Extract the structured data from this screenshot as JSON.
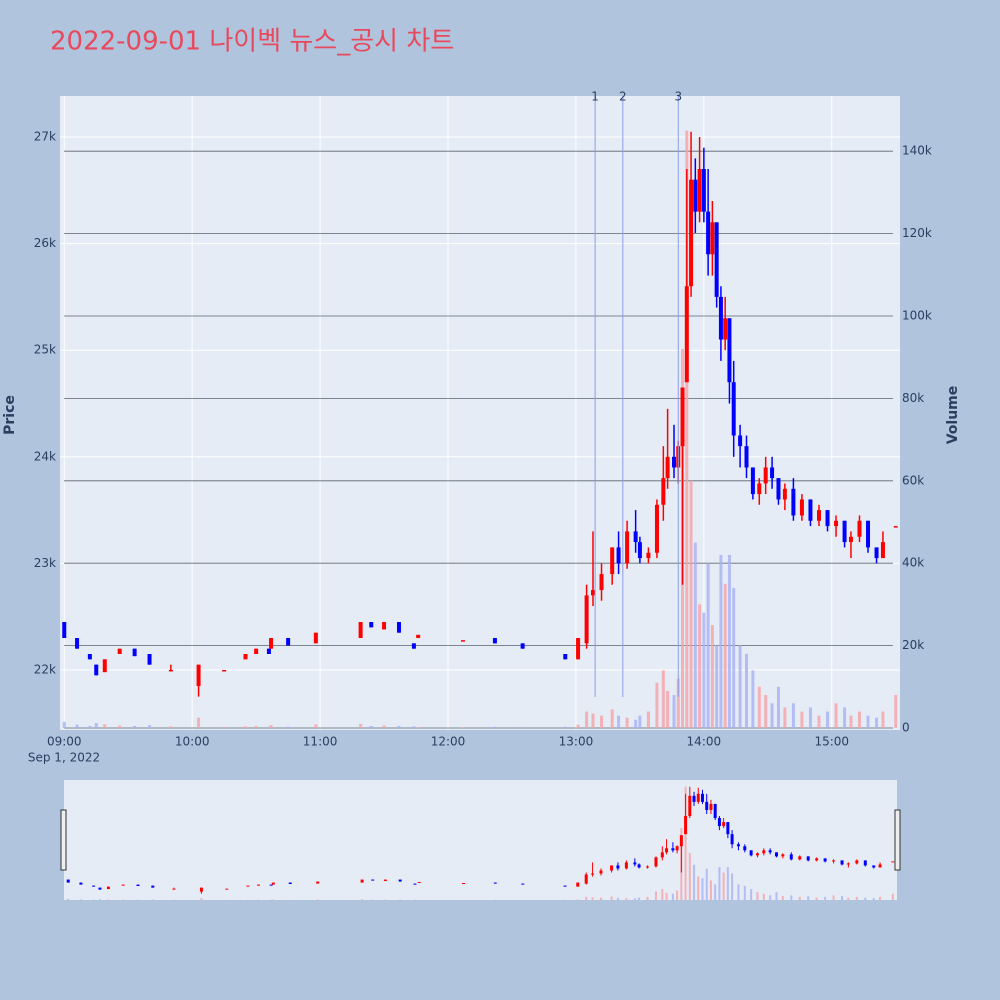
{
  "chart_data": {
    "type": "candlestick",
    "title": "2022-09-01 나이벡 뉴스_공시 차트",
    "y_label": "Price",
    "y2_label": "Volume",
    "x_date_label": "Sep 1, 2022",
    "increasing_color": "#ff0000",
    "decreasing_color": "#0000ff",
    "volume_increasing_color": "#f5a3a8",
    "volume_decreasing_color": "#a8b2f2",
    "marker_color": "#8a9ee8",
    "rangeslider": true,
    "x": [
      "2022-09-01 09:00",
      "2022-09-01 09:06",
      "2022-09-01 09:12",
      "2022-09-01 09:15",
      "2022-09-01 09:19",
      "2022-09-01 09:26",
      "2022-09-01 09:33",
      "2022-09-01 09:40",
      "2022-09-01 09:50",
      "2022-09-01 10:03",
      "2022-09-01 10:15",
      "2022-09-01 10:25",
      "2022-09-01 10:30",
      "2022-09-01 10:36",
      "2022-09-01 10:37",
      "2022-09-01 10:45",
      "2022-09-01 10:58",
      "2022-09-01 11:19",
      "2022-09-01 11:24",
      "2022-09-01 11:30",
      "2022-09-01 11:37",
      "2022-09-01 11:44",
      "2022-09-01 11:46",
      "2022-09-01 12:07",
      "2022-09-01 12:22",
      "2022-09-01 12:35",
      "2022-09-01 12:55",
      "2022-09-01 13:01",
      "2022-09-01 13:05",
      "2022-09-01 13:08",
      "2022-09-01 13:12",
      "2022-09-01 13:17",
      "2022-09-01 13:20",
      "2022-09-01 13:24",
      "2022-09-01 13:28",
      "2022-09-01 13:30",
      "2022-09-01 13:34",
      "2022-09-01 13:38",
      "2022-09-01 13:41",
      "2022-09-01 13:43",
      "2022-09-01 13:46",
      "2022-09-01 13:48",
      "2022-09-01 13:50",
      "2022-09-01 13:52",
      "2022-09-01 13:54",
      "2022-09-01 13:56",
      "2022-09-01 13:58",
      "2022-09-01 14:00",
      "2022-09-01 14:02",
      "2022-09-01 14:04",
      "2022-09-01 14:06",
      "2022-09-01 14:08",
      "2022-09-01 14:10",
      "2022-09-01 14:12",
      "2022-09-01 14:14",
      "2022-09-01 14:17",
      "2022-09-01 14:20",
      "2022-09-01 14:23",
      "2022-09-01 14:26",
      "2022-09-01 14:29",
      "2022-09-01 14:32",
      "2022-09-01 14:35",
      "2022-09-01 14:38",
      "2022-09-01 14:42",
      "2022-09-01 14:46",
      "2022-09-01 14:50",
      "2022-09-01 14:54",
      "2022-09-01 14:58",
      "2022-09-01 15:02",
      "2022-09-01 15:06",
      "2022-09-01 15:09",
      "2022-09-01 15:13",
      "2022-09-01 15:17",
      "2022-09-01 15:21",
      "2022-09-01 15:24",
      "2022-09-01 15:30"
    ],
    "open": [
      22450,
      22300,
      22150,
      22050,
      21980,
      22150,
      22200,
      22150,
      22000,
      21850,
      22000,
      22100,
      22150,
      22200,
      22200,
      22300,
      22250,
      22300,
      22450,
      22380,
      22450,
      22250,
      22300,
      22280,
      22300,
      22250,
      22150,
      22100,
      22250,
      22700,
      22750,
      22900,
      23150,
      23000,
      23300,
      23200,
      23050,
      23100,
      23550,
      23800,
      24000,
      23900,
      24100,
      24700,
      25600,
      26600,
      26300,
      26700,
      26300,
      25900,
      26200,
      25500,
      25100,
      25300,
      24700,
      24200,
      24100,
      23900,
      23650,
      23750,
      23900,
      23800,
      23600,
      23700,
      23450,
      23600,
      23400,
      23500,
      23350,
      23400,
      23200,
      23250,
      23400,
      23150,
      23050,
      23350
    ],
    "high": [
      22450,
      22300,
      22150,
      22050,
      22100,
      22200,
      22200,
      22150,
      22050,
      22050,
      22000,
      22150,
      22200,
      22200,
      22300,
      22300,
      22350,
      22450,
      22450,
      22450,
      22450,
      22250,
      22330,
      22280,
      22300,
      22250,
      22150,
      22300,
      22800,
      23300,
      23000,
      23150,
      23300,
      23400,
      23500,
      23250,
      23150,
      23600,
      24100,
      24450,
      24300,
      24150,
      24650,
      26700,
      27050,
      26800,
      27000,
      26900,
      26700,
      26400,
      26200,
      25600,
      25500,
      25300,
      24900,
      24300,
      24200,
      23900,
      23800,
      24000,
      24000,
      23800,
      23750,
      23800,
      23650,
      23600,
      23550,
      23500,
      23450,
      23400,
      23300,
      23450,
      23400,
      23150,
      23300,
      23350
    ],
    "low": [
      22300,
      22200,
      22100,
      21950,
      21980,
      22150,
      22130,
      22050,
      22000,
      21750,
      22000,
      22100,
      22150,
      22150,
      22200,
      22230,
      22250,
      22300,
      22400,
      22380,
      22350,
      22200,
      22300,
      22280,
      22250,
      22200,
      22100,
      22100,
      22200,
      22600,
      22650,
      22800,
      22900,
      22950,
      23100,
      23000,
      23000,
      23050,
      23400,
      23700,
      23800,
      23750,
      22800,
      24700,
      25500,
      26100,
      26200,
      26200,
      25700,
      25700,
      25400,
      24900,
      25000,
      24500,
      24000,
      23900,
      23800,
      23600,
      23550,
      23650,
      23700,
      23550,
      23500,
      23400,
      23400,
      23350,
      23350,
      23300,
      23250,
      23150,
      23050,
      23200,
      23100,
      23000,
      23050,
      23350
    ],
    "close": [
      22300,
      22200,
      22100,
      21950,
      22100,
      22200,
      22130,
      22050,
      22000,
      22050,
      22000,
      22150,
      22200,
      22150,
      22300,
      22230,
      22350,
      22450,
      22400,
      22450,
      22350,
      22200,
      22330,
      22280,
      22250,
      22200,
      22100,
      22300,
      22700,
      22750,
      22900,
      23150,
      23000,
      23300,
      23200,
      23050,
      23100,
      23550,
      23800,
      24000,
      23900,
      24100,
      24650,
      25600,
      26600,
      26300,
      26700,
      26300,
      25900,
      26200,
      25500,
      25100,
      25300,
      24700,
      24200,
      24100,
      23900,
      23650,
      23750,
      23900,
      23800,
      23600,
      23700,
      23450,
      23600,
      23400,
      23500,
      23350,
      23400,
      23200,
      23250,
      23400,
      23150,
      23050,
      23200,
      23350
    ],
    "volume": [
      1500,
      800,
      500,
      1200,
      900,
      600,
      500,
      700,
      400,
      2500,
      300,
      400,
      500,
      300,
      700,
      300,
      900,
      1000,
      500,
      600,
      500,
      400,
      200,
      200,
      300,
      200,
      300,
      800,
      4000,
      3500,
      3000,
      4500,
      3000,
      2500,
      2000,
      3000,
      4000,
      11000,
      14000,
      9000,
      8000,
      12000,
      92000,
      145000,
      60000,
      45000,
      30000,
      28000,
      40000,
      25000,
      20000,
      42000,
      35000,
      42000,
      34000,
      20000,
      18000,
      14000,
      10000,
      8000,
      6000,
      10000,
      5000,
      6000,
      4000,
      5000,
      3000,
      4000,
      6000,
      5000,
      3000,
      4000,
      3000,
      2500,
      4000,
      8000
    ],
    "markers": [
      {
        "x": "2022-09-01 13:09",
        "label": "1"
      },
      {
        "x": "2022-09-01 13:22",
        "label": "2"
      },
      {
        "x": "2022-09-01 13:48",
        "label": "3"
      }
    ],
    "xlim": [
      "2022-09-01 08:58",
      "2022-09-01 15:32"
    ],
    "xticks": [
      {
        "value": "2022-09-01 09:00",
        "label": "09:00"
      },
      {
        "value": "2022-09-01 10:00",
        "label": "10:00"
      },
      {
        "value": "2022-09-01 11:00",
        "label": "11:00"
      },
      {
        "value": "2022-09-01 12:00",
        "label": "12:00"
      },
      {
        "value": "2022-09-01 13:00",
        "label": "13:00"
      },
      {
        "value": "2022-09-01 14:00",
        "label": "14:00"
      },
      {
        "value": "2022-09-01 15:00",
        "label": "15:00"
      }
    ],
    "ylim": [
      21437,
      27385
    ],
    "yticks": [
      {
        "value": 22000,
        "label": "22k"
      },
      {
        "value": 23000,
        "label": "23k"
      },
      {
        "value": 24000,
        "label": "24k"
      },
      {
        "value": 25000,
        "label": "25k"
      },
      {
        "value": 26000,
        "label": "26k"
      },
      {
        "value": 27000,
        "label": "27k"
      }
    ],
    "y2lim": [
      0,
      153400
    ],
    "y2ticks": [
      0,
      {
        "value": 20000,
        "label": "20k"
      },
      {
        "value": 40000,
        "label": "40k"
      },
      {
        "value": 60000,
        "label": "60k"
      },
      {
        "value": 80000,
        "label": "80k"
      },
      {
        "value": 100000,
        "label": "100k"
      },
      {
        "value": 120000,
        "label": "120k"
      },
      {
        "value": 140000,
        "label": "140k"
      }
    ]
  }
}
